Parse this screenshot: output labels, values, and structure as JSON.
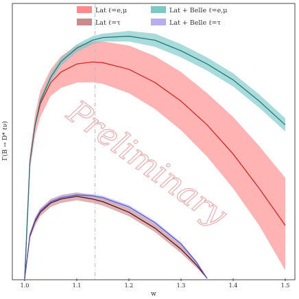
{
  "chart_data": {
    "type": "line",
    "title": "",
    "xlabel": "w",
    "ylabel": "Γ(B → D* ℓν)",
    "xlim": [
      1.0,
      1.5
    ],
    "ylim": [
      0,
      1.0
    ],
    "x_ticks": [
      "1.0",
      "1.1",
      "1.2",
      "1.3",
      "1.4",
      "1.5"
    ],
    "y_ticks": [],
    "grid": false,
    "legend_position": "top",
    "watermark": "Preliminary",
    "reference_line": {
      "x": 1.135,
      "style": "dash-dot",
      "color": "#bbbbbb"
    },
    "x": [
      1.0,
      1.01,
      1.02,
      1.03,
      1.05,
      1.07,
      1.1,
      1.13,
      1.15,
      1.2,
      1.25,
      1.3,
      1.35,
      1.4,
      1.45,
      1.5
    ],
    "series": [
      {
        "name": "Lat ℓ=e,μ",
        "color": "#dd2222",
        "band_color": "#ff8a8a",
        "values": [
          0.0,
          0.44,
          0.58,
          0.66,
          0.74,
          0.78,
          0.81,
          0.818,
          0.815,
          0.79,
          0.74,
          0.67,
          0.58,
          0.47,
          0.34,
          0.2
        ],
        "upper": [
          0.0,
          0.47,
          0.62,
          0.71,
          0.79,
          0.84,
          0.88,
          0.895,
          0.895,
          0.88,
          0.84,
          0.78,
          0.7,
          0.61,
          0.5,
          0.38
        ],
        "lower": [
          0.0,
          0.41,
          0.54,
          0.61,
          0.69,
          0.72,
          0.74,
          0.741,
          0.735,
          0.7,
          0.64,
          0.56,
          0.46,
          0.34,
          0.2,
          0.03
        ]
      },
      {
        "name": "Lat + Belle ℓ=e,μ",
        "color": "#1f7a7a",
        "band_color": "#7cc7c7",
        "values": [
          0.0,
          0.44,
          0.58,
          0.67,
          0.76,
          0.82,
          0.87,
          0.9,
          0.91,
          0.915,
          0.9,
          0.86,
          0.81,
          0.75,
          0.67,
          0.58
        ],
        "upper": [
          0.0,
          0.45,
          0.595,
          0.685,
          0.775,
          0.835,
          0.885,
          0.915,
          0.925,
          0.935,
          0.925,
          0.885,
          0.835,
          0.775,
          0.695,
          0.605
        ],
        "lower": [
          0.0,
          0.43,
          0.565,
          0.655,
          0.745,
          0.805,
          0.855,
          0.885,
          0.895,
          0.895,
          0.875,
          0.835,
          0.785,
          0.725,
          0.645,
          0.555
        ]
      },
      {
        "name": "Lat ℓ=τ",
        "color": "#5a0f1a",
        "band_color": "#c98a8a",
        "x": [
          1.0,
          1.01,
          1.02,
          1.03,
          1.05,
          1.07,
          1.1,
          1.13,
          1.15,
          1.2,
          1.25,
          1.3,
          1.33,
          1.35
        ],
        "values": [
          0.0,
          0.16,
          0.215,
          0.25,
          0.285,
          0.3,
          0.31,
          0.3,
          0.29,
          0.25,
          0.19,
          0.11,
          0.05,
          0.0
        ],
        "upper": [
          0.0,
          0.17,
          0.23,
          0.265,
          0.3,
          0.315,
          0.325,
          0.315,
          0.305,
          0.265,
          0.205,
          0.125,
          0.06,
          0.0
        ],
        "lower": [
          0.0,
          0.15,
          0.2,
          0.235,
          0.27,
          0.285,
          0.295,
          0.285,
          0.275,
          0.235,
          0.175,
          0.095,
          0.04,
          0.0
        ]
      },
      {
        "name": "Lat + Belle ℓ=τ",
        "color": "#5a5ad6",
        "band_color": "#b5b0ec",
        "x": [
          1.0,
          1.01,
          1.02,
          1.03,
          1.05,
          1.07,
          1.1,
          1.13,
          1.15,
          1.2,
          1.25,
          1.3,
          1.33,
          1.35
        ],
        "values": [
          0.0,
          0.165,
          0.22,
          0.255,
          0.29,
          0.305,
          0.315,
          0.312,
          0.305,
          0.27,
          0.21,
          0.13,
          0.06,
          0.0
        ],
        "upper": [
          0.0,
          0.17,
          0.227,
          0.262,
          0.297,
          0.312,
          0.322,
          0.319,
          0.312,
          0.277,
          0.217,
          0.137,
          0.066,
          0.0
        ],
        "lower": [
          0.0,
          0.16,
          0.213,
          0.248,
          0.283,
          0.298,
          0.308,
          0.305,
          0.298,
          0.263,
          0.203,
          0.123,
          0.054,
          0.0
        ]
      }
    ],
    "legend": [
      {
        "label": "Lat ℓ=e,μ",
        "color": "#ff8a8a"
      },
      {
        "label": "Lat + Belle ℓ=e,μ",
        "color": "#7cc7c7"
      },
      {
        "label": "Lat ℓ=τ",
        "color": "#c98a8a"
      },
      {
        "label": "Lat + Belle ℓ=τ",
        "color": "#b5b0ec"
      }
    ]
  }
}
